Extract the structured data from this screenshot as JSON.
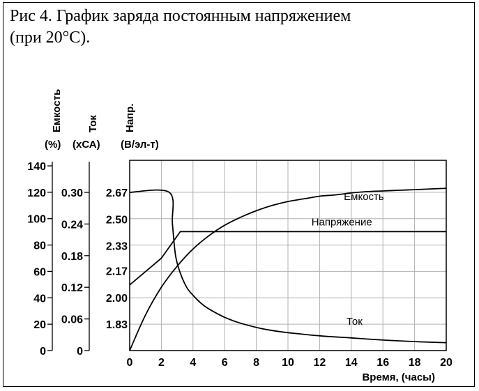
{
  "caption": {
    "line1": "Рис 4. График заряда постоянным напряжением",
    "line2": "(при 20°С)."
  },
  "chart_data": {
    "type": "line",
    "grid": true,
    "xlabel": "Время, (часы)",
    "xlim": [
      0,
      20
    ],
    "xticks": [
      "0",
      "2",
      "4",
      "6",
      "8",
      "10",
      "12",
      "14",
      "16",
      "18",
      "20"
    ],
    "axes": {
      "capacity": {
        "header": "Емкость",
        "units": "(%)",
        "ticks": [
          "140",
          "120",
          "100",
          "80",
          "60",
          "40",
          "20",
          "0"
        ],
        "range": [
          0,
          140
        ]
      },
      "current": {
        "header": "Ток",
        "units": "(хСА)",
        "ticks": [
          "0.30",
          "0.24",
          "0.18",
          "0.12",
          "0.06",
          "0"
        ],
        "range": [
          0,
          0.3
        ]
      },
      "voltage": {
        "header": "Напр.",
        "units": "(В/эл-т)",
        "ticks": [
          "2.67",
          "2.50",
          "2.33",
          "2.17",
          "2.00",
          "1.83"
        ]
      }
    },
    "series": [
      {
        "name": "Емкость",
        "axis": "capacity",
        "x": [
          0,
          1,
          2,
          3,
          4,
          5,
          6,
          7,
          8,
          9,
          10,
          11,
          12,
          13,
          14,
          15,
          16,
          17,
          18,
          19,
          20
        ],
        "y": [
          0,
          27,
          48,
          64,
          77,
          87,
          95,
          101,
          106,
          110,
          113,
          115,
          117,
          118,
          119.5,
          120.5,
          121,
          121.5,
          122,
          122.5,
          123
        ]
      },
      {
        "name": "Напряжение",
        "axis": "voltage",
        "x": [
          0,
          2,
          3.2,
          20
        ],
        "y": [
          2.08,
          2.25,
          2.42,
          2.42
        ]
      },
      {
        "name": "Ток",
        "axis": "current",
        "x": [
          0,
          2.5,
          2.7,
          2.9,
          3.2,
          3.6,
          4,
          4.5,
          5,
          6,
          7,
          8,
          9,
          10,
          12,
          14,
          16,
          18,
          20
        ],
        "y": [
          0.3,
          0.3,
          0.24,
          0.18,
          0.147,
          0.12,
          0.105,
          0.09,
          0.079,
          0.063,
          0.052,
          0.044,
          0.038,
          0.034,
          0.028,
          0.024,
          0.02,
          0.017,
          0.015
        ]
      }
    ]
  }
}
